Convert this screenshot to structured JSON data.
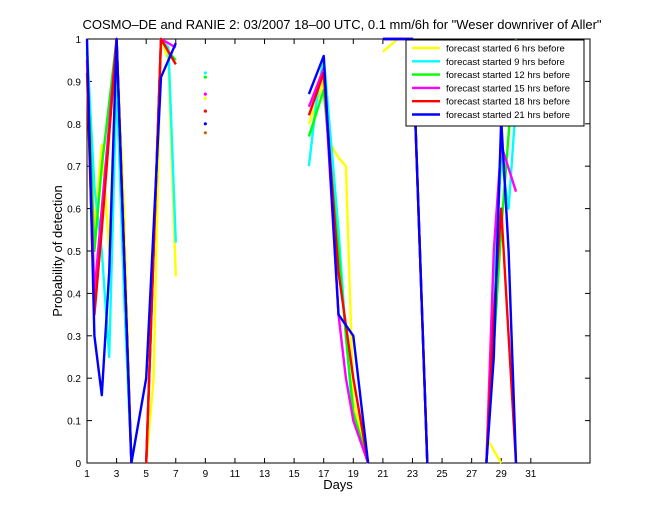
{
  "chart_data": {
    "type": "line",
    "title": "COSMO–DE and RANIE 2: 03/2007 18–00 UTC, 0.1 mm/6h for \"Weser downriver of Aller\"",
    "xlabel": "Days",
    "ylabel": "Probability of detection",
    "xlim": [
      1,
      35
    ],
    "ylim": [
      0,
      1
    ],
    "xticks": [
      "1",
      "3",
      "5",
      "7",
      "9",
      "11",
      "13",
      "15",
      "17",
      "19",
      "21",
      "23",
      "25",
      "27",
      "29",
      "31"
    ],
    "xtick_values": [
      1,
      3,
      5,
      7,
      9,
      11,
      13,
      15,
      17,
      19,
      21,
      23,
      25,
      27,
      29,
      31
    ],
    "yticks": [
      "0",
      "0.1",
      "0.2",
      "0.3",
      "0.4",
      "0.5",
      "0.6",
      "0.7",
      "0.8",
      "0.9",
      "1"
    ],
    "ytick_values": [
      0,
      0.1,
      0.2,
      0.3,
      0.4,
      0.5,
      0.6,
      0.7,
      0.8,
      0.9,
      1
    ],
    "grid": false,
    "legend_position": "top-right",
    "series": [
      {
        "name": "forecast started 6 hrs before",
        "color": "#ffff00",
        "segments": [
          [
            [
              1,
              0.93
            ],
            [
              1.5,
              0.55
            ],
            [
              2,
              0.75
            ],
            [
              2.5,
              0.5
            ],
            [
              3,
              1
            ],
            [
              3.5,
              0.6
            ],
            [
              4,
              0
            ]
          ],
          [
            [
              5,
              0
            ],
            [
              5.5,
              0.2
            ],
            [
              6,
              1
            ],
            [
              6.5,
              0.95
            ],
            [
              7,
              0.44
            ]
          ],
          [
            [
              16,
              0.8
            ],
            [
              17,
              0.9
            ],
            [
              17.5,
              0.75
            ],
            [
              18,
              0.72
            ],
            [
              18.5,
              0.7
            ],
            [
              19,
              0.15
            ],
            [
              20,
              0
            ]
          ],
          [
            [
              21,
              0.97
            ],
            [
              22,
              1
            ],
            [
              23,
              1
            ],
            [
              24,
              0
            ]
          ],
          [
            [
              28,
              0.06
            ],
            [
              29,
              0
            ]
          ]
        ],
        "markers": [
          [
            9,
            0.86
          ]
        ]
      },
      {
        "name": "forecast started 9 hrs before",
        "color": "#00ffff",
        "segments": [
          [
            [
              1,
              0.98
            ],
            [
              1.5,
              0.65
            ],
            [
              2,
              0.5
            ],
            [
              2.5,
              0.25
            ],
            [
              3,
              0.9
            ],
            [
              3.5,
              0.4
            ],
            [
              4,
              0
            ]
          ],
          [
            [
              5,
              0
            ],
            [
              6,
              1
            ],
            [
              6.5,
              0.98
            ],
            [
              7,
              0.52
            ]
          ],
          [
            [
              16,
              0.7
            ],
            [
              16.5,
              0.85
            ],
            [
              17,
              0.96
            ],
            [
              18,
              0.55
            ],
            [
              18.5,
              0.3
            ],
            [
              19,
              0.1
            ],
            [
              20,
              0
            ]
          ],
          [
            [
              21,
              1
            ],
            [
              22,
              1
            ],
            [
              23,
              1
            ],
            [
              24,
              0
            ]
          ],
          [
            [
              28,
              0
            ],
            [
              28.5,
              0.4
            ],
            [
              29,
              0.72
            ],
            [
              29.5,
              0.6
            ],
            [
              30,
              0.85
            ]
          ]
        ],
        "markers": [
          [
            9,
            0.92
          ]
        ]
      },
      {
        "name": "forecast started 12 hrs before",
        "color": "#00ff00",
        "segments": [
          [
            [
              1,
              0.97
            ],
            [
              1.5,
              0.5
            ],
            [
              2,
              0.7
            ],
            [
              3,
              1
            ],
            [
              4,
              0
            ]
          ],
          [
            [
              5,
              0
            ],
            [
              6,
              1
            ],
            [
              6.5,
              0.97
            ],
            [
              7,
              0.95
            ]
          ],
          [
            [
              16,
              0.77
            ],
            [
              17,
              0.88
            ],
            [
              18,
              0.5
            ],
            [
              18.5,
              0.3
            ],
            [
              19,
              0.12
            ],
            [
              20,
              0
            ]
          ],
          [
            [
              21,
              1
            ],
            [
              22,
              1
            ],
            [
              23,
              1
            ],
            [
              24,
              0
            ]
          ],
          [
            [
              28,
              0
            ],
            [
              29,
              0.55
            ],
            [
              30,
              1
            ]
          ]
        ],
        "markers": [
          [
            9,
            0.91
          ]
        ]
      },
      {
        "name": "forecast started 15 hrs before",
        "color": "#ff00ff",
        "segments": [
          [
            [
              1,
              0.95
            ],
            [
              1.5,
              0.4
            ],
            [
              2,
              0.6
            ],
            [
              3,
              1
            ],
            [
              4,
              0
            ]
          ],
          [
            [
              5,
              0
            ],
            [
              6,
              1
            ],
            [
              6.5,
              0.99
            ],
            [
              7,
              0.98
            ]
          ],
          [
            [
              16,
              0.84
            ],
            [
              17,
              0.93
            ],
            [
              18,
              0.35
            ],
            [
              18.5,
              0.2
            ],
            [
              19,
              0.1
            ],
            [
              20,
              0
            ]
          ],
          [
            [
              21,
              1
            ],
            [
              22,
              1
            ],
            [
              23,
              1
            ],
            [
              24,
              0
            ]
          ],
          [
            [
              28,
              0
            ],
            [
              28.5,
              0.5
            ],
            [
              29,
              0.75
            ],
            [
              30,
              0.64
            ]
          ]
        ],
        "markers": [
          [
            9,
            0.87
          ]
        ]
      },
      {
        "name": "forecast started 18 hrs before",
        "color": "#ff0000",
        "segments": [
          [
            [
              1,
              0.92
            ],
            [
              1.5,
              0.35
            ],
            [
              2,
              0.55
            ],
            [
              3,
              1
            ],
            [
              4,
              0
            ]
          ],
          [
            [
              5,
              0
            ],
            [
              6,
              1
            ],
            [
              7,
              0.94
            ]
          ],
          [
            [
              16,
              0.82
            ],
            [
              17,
              0.92
            ],
            [
              18,
              0.45
            ],
            [
              19,
              0.2
            ],
            [
              20,
              0
            ]
          ],
          [
            [
              21,
              1
            ],
            [
              22,
              1
            ],
            [
              23,
              1
            ],
            [
              24,
              0
            ]
          ],
          [
            [
              28,
              0
            ],
            [
              28.5,
              0.35
            ],
            [
              29,
              0.6
            ],
            [
              30,
              0
            ]
          ]
        ],
        "markers": [
          [
            9,
            0.83
          ]
        ]
      },
      {
        "name": "forecast started 21 hrs before",
        "color": "#0000ff",
        "segments": [
          [
            [
              1,
              1
            ],
            [
              1.5,
              0.3
            ],
            [
              2,
              0.16
            ],
            [
              2.5,
              0.45
            ],
            [
              3,
              1
            ],
            [
              4,
              0
            ]
          ],
          [
            [
              4,
              0
            ],
            [
              5,
              0.2
            ],
            [
              6,
              0.91
            ],
            [
              7,
              0.99
            ]
          ],
          [
            [
              16,
              0.87
            ],
            [
              17,
              0.96
            ],
            [
              18,
              0.35
            ],
            [
              19,
              0.3
            ],
            [
              20,
              0
            ]
          ],
          [
            [
              21,
              1
            ],
            [
              22,
              1
            ],
            [
              23,
              1
            ],
            [
              24,
              0
            ]
          ],
          [
            [
              28,
              0
            ],
            [
              28.5,
              0.25
            ],
            [
              29,
              0.81
            ],
            [
              29.5,
              0.5
            ],
            [
              30,
              0
            ]
          ]
        ],
        "markers": [
          [
            9,
            0.8
          ]
        ]
      }
    ],
    "orange_marker": [
      9,
      0.8
    ]
  }
}
